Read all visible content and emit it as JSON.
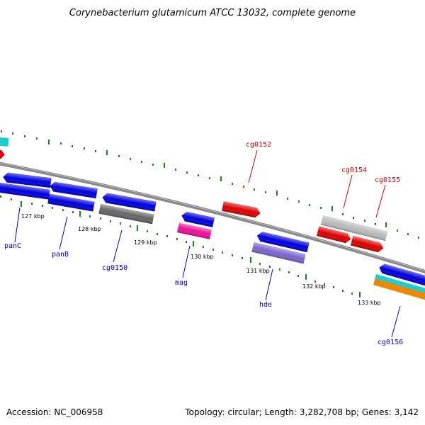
{
  "title": "Corynebacterium glutamicum ATCC 13032, complete genome",
  "accession": "Accession: NC_006958",
  "topology": "Topology: circular; Length: 3,282,708 bp; Genes: 3,142",
  "ticks": [
    {
      "label": "127 kbp"
    },
    {
      "label": "128 kbp"
    },
    {
      "label": "129 kbp"
    },
    {
      "label": "130 kbp"
    },
    {
      "label": "131 kbp"
    },
    {
      "label": "132 kbp"
    },
    {
      "label": "133 kbp"
    }
  ],
  "gene_labels": [
    {
      "text": "panC",
      "color": "#0000cc"
    },
    {
      "text": "panB",
      "color": "#0000cc"
    },
    {
      "text": "cg0150",
      "color": "#0000cc"
    },
    {
      "text": "mag",
      "color": "#0000cc"
    },
    {
      "text": "hde",
      "color": "#0000cc"
    },
    {
      "text": "cg0156",
      "color": "#0000cc"
    },
    {
      "text": "cg0152",
      "color": "#cc0000"
    },
    {
      "text": "cg0154",
      "color": "#cc0000"
    },
    {
      "text": "cg0155",
      "color": "#cc0000"
    }
  ],
  "colors": {
    "forward": "#dd0000",
    "reverse": "#0000dd",
    "grey": "#666666",
    "light_grey": "#bbbbbb",
    "magenta": "#ee1199",
    "purple": "#7a66cc",
    "cyan": "#22cccc",
    "orange": "#ee8800",
    "tick_green": "#118811",
    "backbone": "#888888"
  }
}
